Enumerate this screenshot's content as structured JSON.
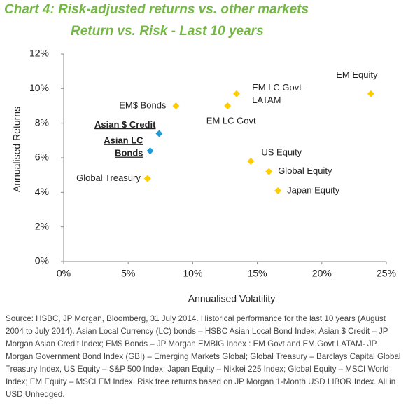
{
  "chart_data": {
    "type": "scatter",
    "title": "Chart 4: Risk-adjusted returns vs. other markets",
    "subtitle": "Return vs. Risk - Last 10 years",
    "x_label": "Annualised Volatility",
    "y_label": "Annualised Returns",
    "xlim": [
      0,
      25
    ],
    "ylim": [
      0,
      12
    ],
    "xticks": [
      {
        "value": 0,
        "label": "0%"
      },
      {
        "value": 5,
        "label": "5%"
      },
      {
        "value": 10,
        "label": "10%"
      },
      {
        "value": 15,
        "label": "15%"
      },
      {
        "value": 20,
        "label": "20%"
      },
      {
        "value": 25,
        "label": "25%"
      }
    ],
    "yticks": [
      {
        "value": 0,
        "label": "0%"
      },
      {
        "value": 2,
        "label": "2%"
      },
      {
        "value": 4,
        "label": "4%"
      },
      {
        "value": 6,
        "label": "6%"
      },
      {
        "value": 8,
        "label": "8%"
      },
      {
        "value": 10,
        "label": "10%"
      },
      {
        "value": 12,
        "label": "12%"
      }
    ],
    "grid": false,
    "points": [
      {
        "name": [
          "EM$ Bonds"
        ],
        "x": 8.7,
        "y": 9.0,
        "color": "#ffcc00",
        "highlight": false
      },
      {
        "name": [
          "EM LC Govt -",
          "LATAM"
        ],
        "x": 13.4,
        "y": 9.7,
        "color": "#ffcc00",
        "highlight": false
      },
      {
        "name": [
          "EM LC Govt"
        ],
        "x": 12.7,
        "y": 9.0,
        "color": "#ffcc00",
        "highlight": false
      },
      {
        "name": [
          "EM Equity"
        ],
        "x": 23.8,
        "y": 9.7,
        "color": "#ffcc00",
        "highlight": false
      },
      {
        "name": [
          "Asian $ Credit"
        ],
        "x": 7.4,
        "y": 7.4,
        "color": "#1e9ad6",
        "highlight": true
      },
      {
        "name": [
          "Asian LC",
          "Bonds"
        ],
        "x": 6.7,
        "y": 6.4,
        "color": "#1e9ad6",
        "highlight": true
      },
      {
        "name": [
          "Global Treasury"
        ],
        "x": 6.5,
        "y": 4.8,
        "color": "#ffcc00",
        "highlight": false
      },
      {
        "name": [
          "US Equity"
        ],
        "x": 14.5,
        "y": 5.8,
        "color": "#ffcc00",
        "highlight": false
      },
      {
        "name": [
          "Global Equity"
        ],
        "x": 15.9,
        "y": 5.2,
        "color": "#ffcc00",
        "highlight": false
      },
      {
        "name": [
          "Japan Equity"
        ],
        "x": 16.6,
        "y": 4.1,
        "color": "#ffcc00",
        "highlight": false
      }
    ],
    "source": "Source: HSBC, JP Morgan, Bloomberg, 31 July 2014. Historical performance for the last 10 years (August 2004 to July 2014). Asian Local Currency (LC) bonds – HSBC Asian Local Bond Index; Asian $ Credit – JP Morgan Asian Credit Index; EM$ Bonds – JP Morgan EMBIG Index : EM Govt and EM Govt LATAM- JP Morgan Government Bond Index (GBI) – Emerging Markets Global; Global Treasury – Barclays Capital Global Treasury Index, US Equity – S&P 500 Index; Japan Equity – Nikkei 225 Index; Global Equity – MSCI World Index; EM Equity – MSCI EM Index. Risk free returns based on JP Morgan 1-Month USD LIBOR Index. All in USD Unhedged."
  }
}
